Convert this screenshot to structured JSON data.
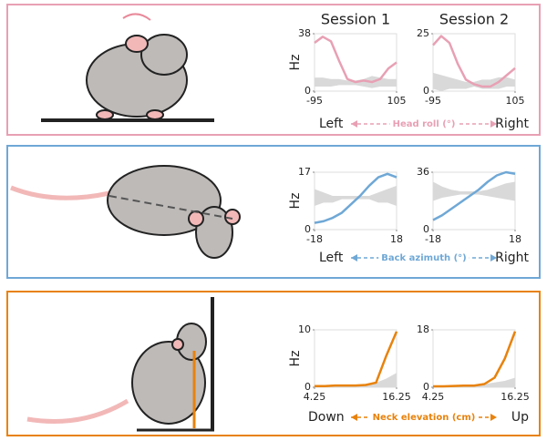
{
  "panels": [
    {
      "left": "Left",
      "label": "Head roll (°)",
      "right": "Right",
      "color": "#e8a0b4"
    },
    {
      "left": "Left",
      "label": "Back azimuth (°)",
      "right": "Right",
      "color": "#6fa8d6"
    },
    {
      "left": "Down",
      "label": "Neck elevation (cm)",
      "right": "Up",
      "color": "#e8820c"
    }
  ],
  "chart_data": [
    {
      "type": "line",
      "title": "Session 1",
      "ylabel": "Hz",
      "x": [
        -95,
        -75,
        -55,
        -35,
        -15,
        5,
        25,
        45,
        65,
        85,
        105
      ],
      "xlim": [
        -95,
        105
      ],
      "xticks": [
        -95,
        105
      ],
      "ylim": [
        0,
        38
      ],
      "yticks": [
        0,
        38
      ],
      "series": [
        {
          "color": "#e8a0b4",
          "values": [
            32,
            36,
            33,
            20,
            8,
            6,
            7,
            6,
            8,
            15,
            19
          ]
        }
      ],
      "band": {
        "color": "#d9d9d9",
        "low": [
          3,
          3,
          3,
          4,
          4,
          4,
          3,
          2,
          3,
          3,
          3
        ],
        "high": [
          9,
          9,
          8,
          8,
          7,
          7,
          8,
          10,
          9,
          8,
          8
        ]
      }
    },
    {
      "type": "line",
      "title": "Session 2",
      "ylabel": "Hz",
      "x": [
        -95,
        -75,
        -55,
        -35,
        -15,
        5,
        25,
        45,
        65,
        85,
        105
      ],
      "xlim": [
        -95,
        105
      ],
      "xticks": [
        -95,
        105
      ],
      "ylim": [
        0,
        25
      ],
      "yticks": [
        0,
        25
      ],
      "series": [
        {
          "color": "#e8a0b4",
          "values": [
            20,
            24,
            21,
            12,
            5,
            3,
            2,
            2,
            4,
            7,
            10
          ]
        }
      ],
      "band": {
        "color": "#d9d9d9",
        "low": [
          1,
          0,
          1,
          1,
          1,
          2,
          1,
          1,
          1,
          2,
          2
        ],
        "high": [
          8,
          7,
          6,
          5,
          4,
          4,
          5,
          5,
          6,
          6,
          5
        ]
      }
    },
    {
      "type": "line",
      "ylabel": "Hz",
      "x": [
        -18,
        -14,
        -10,
        -6,
        -2,
        2,
        6,
        10,
        14,
        18
      ],
      "xlim": [
        -18,
        18
      ],
      "xticks": [
        -18,
        18
      ],
      "ylim": [
        0,
        17
      ],
      "yticks": [
        0,
        17
      ],
      "series": [
        {
          "color": "#6fa8d6",
          "values": [
            2,
            2.5,
            3.5,
            5,
            7.5,
            10,
            13,
            15.5,
            16.5,
            15.5
          ]
        }
      ],
      "band": {
        "color": "#d9d9d9",
        "low": [
          7,
          8,
          8,
          9,
          9,
          9,
          9,
          8,
          8,
          7
        ],
        "high": [
          12,
          11,
          10,
          10,
          10,
          10,
          10,
          11,
          12,
          13
        ]
      }
    },
    {
      "type": "line",
      "ylabel": "Hz",
      "x": [
        -18,
        -14,
        -10,
        -6,
        -2,
        2,
        6,
        10,
        14,
        18
      ],
      "xlim": [
        -18,
        18
      ],
      "xticks": [
        -18,
        18
      ],
      "ylim": [
        0,
        36
      ],
      "yticks": [
        0,
        36
      ],
      "series": [
        {
          "color": "#6fa8d6",
          "values": [
            6,
            9,
            13,
            17,
            21,
            25,
            30,
            34,
            36,
            35
          ]
        }
      ],
      "band": {
        "color": "#d9d9d9",
        "low": [
          18,
          20,
          21,
          22,
          22,
          22,
          21,
          20,
          19,
          18
        ],
        "high": [
          30,
          27,
          25,
          24,
          24,
          24,
          25,
          27,
          29,
          30
        ]
      }
    },
    {
      "type": "line",
      "ylabel": "Hz",
      "x": [
        4.25,
        5.75,
        7.25,
        8.75,
        10.25,
        11.75,
        13.25,
        14.75,
        16.25
      ],
      "xlim": [
        4.25,
        16.25
      ],
      "xticks": [
        4.25,
        16.25
      ],
      "ylim": [
        0,
        10
      ],
      "yticks": [
        0,
        10
      ],
      "series": [
        {
          "color": "#e8820c",
          "values": [
            0.2,
            0.2,
            0.3,
            0.3,
            0.3,
            0.4,
            0.8,
            5.5,
            9.7
          ]
        }
      ],
      "band": {
        "color": "#d9d9d9",
        "low": [
          0,
          0,
          0,
          0,
          0,
          0,
          0,
          0,
          0
        ],
        "high": [
          0.2,
          0.2,
          0.3,
          0.4,
          0.4,
          0.6,
          0.8,
          1.5,
          2.5
        ]
      }
    },
    {
      "type": "line",
      "ylabel": "Hz",
      "x": [
        4.25,
        5.75,
        7.25,
        8.75,
        10.25,
        11.75,
        13.25,
        14.75,
        16.25
      ],
      "xlim": [
        4.25,
        16.25
      ],
      "xticks": [
        4.25,
        16.25
      ],
      "ylim": [
        0,
        18
      ],
      "yticks": [
        0,
        18
      ],
      "series": [
        {
          "color": "#e8820c",
          "values": [
            0.3,
            0.3,
            0.4,
            0.5,
            0.5,
            1,
            3,
            9,
            17.5
          ]
        }
      ],
      "band": {
        "color": "#d9d9d9",
        "low": [
          0,
          0,
          0,
          0,
          0,
          0,
          0,
          0,
          0
        ],
        "high": [
          0.5,
          0.5,
          0.6,
          0.7,
          0.8,
          1,
          1.5,
          2,
          3
        ]
      }
    }
  ]
}
